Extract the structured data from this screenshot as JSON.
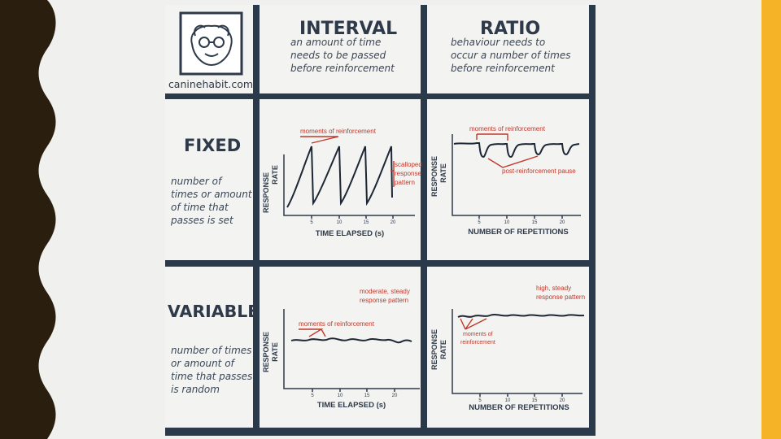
{
  "logo": {
    "site": "caninehabit.com"
  },
  "columns": {
    "interval": {
      "title": "INTERVAL",
      "desc": [
        "an amount of time",
        "needs to be passed",
        "before reinforcement"
      ]
    },
    "ratio": {
      "title": "RATIO",
      "desc": [
        "behaviour needs to",
        "occur a number of times",
        "before reinforcement"
      ]
    }
  },
  "rows": {
    "fixed": {
      "title": "FIXED",
      "desc": [
        "number of",
        "times or amount",
        "of time that",
        "passes is set"
      ]
    },
    "variable": {
      "title": "VARIABLE",
      "desc": [
        "number of times",
        "or amount of",
        "time that passes",
        "is random"
      ]
    }
  },
  "charts": {
    "fixed_interval": {
      "ylabel": [
        "RESPONSE",
        "RATE"
      ],
      "xlabel": "TIME ELAPSED (s)",
      "ticks": [
        "5",
        "10",
        "15",
        "20"
      ],
      "annotations": {
        "moments": "moments of reinforcement",
        "pattern": [
          "scalloped",
          "response",
          "pattern"
        ]
      }
    },
    "fixed_ratio": {
      "ylabel": [
        "RESPONSE",
        "RATE"
      ],
      "xlabel": "NUMBER OF REPETITIONS",
      "ticks": [
        "5",
        "10",
        "15",
        "20"
      ],
      "annotations": {
        "moments": "moments of reinforcement",
        "pause": "post-reinforcement pause"
      }
    },
    "variable_interval": {
      "ylabel": [
        "RESPONSE",
        "RATE"
      ],
      "xlabel": "TIME ELAPSED (s)",
      "ticks": [
        "5",
        "10",
        "15",
        "20"
      ],
      "annotations": {
        "moments": "moments of reinforcement",
        "pattern": [
          "moderate, steady",
          "response pattern"
        ]
      }
    },
    "variable_ratio": {
      "ylabel": [
        "RESPONSE",
        "RATE"
      ],
      "xlabel": "NUMBER OF REPETITIONS",
      "ticks": [
        "5",
        "10",
        "15",
        "20"
      ],
      "annotations": {
        "moments": [
          "moments of",
          "reinforcement"
        ],
        "pattern": [
          "high, steady",
          "response pattern"
        ]
      }
    }
  },
  "colors": {
    "grid": "#2b3a4b",
    "annotation": "#c0392b",
    "page": "#f0f0ee",
    "left_bar": "#2a1f0e",
    "right_bar": "#f5b428"
  }
}
